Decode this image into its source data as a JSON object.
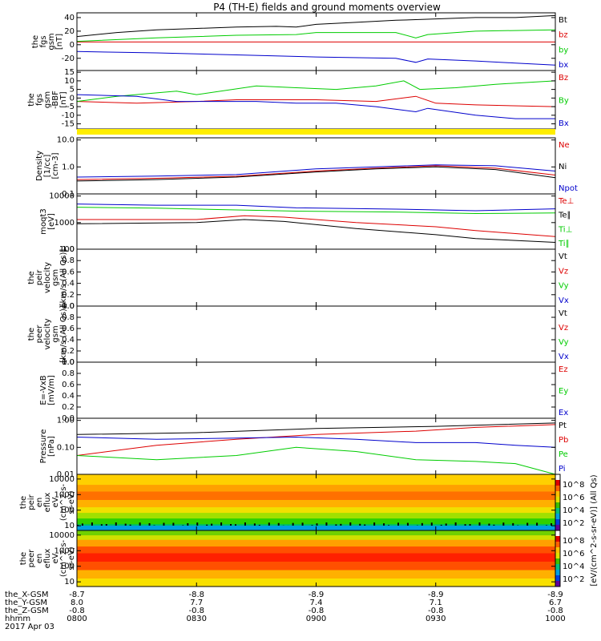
{
  "title": "P4 (TH-E) fields and ground moments overview",
  "colors": {
    "black": "#000000",
    "red": "#dd0000",
    "green": "#00cc00",
    "blue": "#0000cc",
    "yellow": "#ffee00"
  },
  "chart_data": [
    {
      "type": "line",
      "id": "p1",
      "ylabel_lines": [
        "the",
        "fgs",
        "gsm",
        "[nT]"
      ],
      "yticks": [
        "40",
        "20",
        "0",
        "-20"
      ],
      "ylim": [
        -38,
        47
      ],
      "series": [
        {
          "name": "Bt",
          "color": "#000000",
          "points": [
            [
              0,
              12
            ],
            [
              10,
              18
            ],
            [
              20,
              22
            ],
            [
              30,
              24
            ],
            [
              40,
              26
            ],
            [
              50,
              27
            ],
            [
              55,
              26
            ],
            [
              60,
              30
            ],
            [
              70,
              33
            ],
            [
              80,
              36
            ],
            [
              85,
              37
            ],
            [
              90,
              38
            ],
            [
              100,
              40
            ],
            [
              110,
              40
            ],
            [
              120,
              43
            ]
          ]
        },
        {
          "name": "bz",
          "color": "#dd0000",
          "points": [
            [
              0,
              4
            ],
            [
              30,
              4
            ],
            [
              60,
              4
            ],
            [
              90,
              4
            ],
            [
              120,
              4
            ]
          ]
        },
        {
          "name": "by",
          "color": "#00cc00",
          "points": [
            [
              0,
              5
            ],
            [
              20,
              10
            ],
            [
              40,
              14
            ],
            [
              55,
              15
            ],
            [
              60,
              18
            ],
            [
              80,
              18
            ],
            [
              85,
              10
            ],
            [
              88,
              15
            ],
            [
              100,
              20
            ],
            [
              120,
              22
            ]
          ]
        },
        {
          "name": "bx",
          "color": "#0000cc",
          "points": [
            [
              0,
              -10
            ],
            [
              20,
              -12
            ],
            [
              40,
              -15
            ],
            [
              60,
              -18
            ],
            [
              80,
              -20
            ],
            [
              85,
              -26
            ],
            [
              88,
              -21
            ],
            [
              100,
              -24
            ],
            [
              110,
              -27
            ],
            [
              120,
              -30
            ]
          ]
        }
      ]
    },
    {
      "type": "line",
      "id": "p2",
      "ylabel_lines": [
        "the",
        "fgs",
        "gsm",
        "-BBF",
        "[nT]"
      ],
      "yticks": [
        "15",
        "10",
        "5",
        "0",
        "-5",
        "-10",
        "-15"
      ],
      "ylim": [
        -18,
        16
      ],
      "series": [
        {
          "name": "Bz",
          "color": "#dd0000",
          "points": [
            [
              0,
              -2
            ],
            [
              15,
              -3
            ],
            [
              30,
              -2
            ],
            [
              40,
              -1
            ],
            [
              50,
              -1
            ],
            [
              60,
              -1
            ],
            [
              75,
              -2
            ],
            [
              85,
              1
            ],
            [
              90,
              -3
            ],
            [
              100,
              -4
            ],
            [
              120,
              -5
            ]
          ]
        },
        {
          "name": "By",
          "color": "#00cc00",
          "points": [
            [
              0,
              -2
            ],
            [
              10,
              1
            ],
            [
              20,
              3
            ],
            [
              25,
              4
            ],
            [
              30,
              2
            ],
            [
              45,
              7
            ],
            [
              55,
              6
            ],
            [
              65,
              5
            ],
            [
              75,
              7
            ],
            [
              82,
              10
            ],
            [
              86,
              5
            ],
            [
              95,
              6
            ],
            [
              105,
              8
            ],
            [
              120,
              10
            ]
          ]
        },
        {
          "name": "Bx",
          "color": "#0000cc",
          "points": [
            [
              0,
              2
            ],
            [
              15,
              1
            ],
            [
              25,
              -2
            ],
            [
              35,
              -2
            ],
            [
              45,
              -2
            ],
            [
              55,
              -3
            ],
            [
              65,
              -3
            ],
            [
              75,
              -5
            ],
            [
              85,
              -8
            ],
            [
              88,
              -6
            ],
            [
              100,
              -10
            ],
            [
              110,
              -12
            ],
            [
              120,
              -12
            ]
          ]
        }
      ]
    },
    {
      "type": "line",
      "id": "p3",
      "ylabel_lines": [
        "Density",
        "[1/cc]",
        "[cm-3]"
      ],
      "log": true,
      "yticks": [
        "10.0",
        "1.0",
        "0.1"
      ],
      "ylim": [
        0.1,
        12
      ],
      "series": [
        {
          "name": "Ne",
          "color": "#dd0000",
          "points": [
            [
              0,
              0.34
            ],
            [
              20,
              0.38
            ],
            [
              40,
              0.45
            ],
            [
              60,
              0.7
            ],
            [
              75,
              0.9
            ],
            [
              90,
              1.1
            ],
            [
              105,
              0.9
            ],
            [
              120,
              0.5
            ]
          ]
        },
        {
          "name": "Ni",
          "color": "#000000",
          "points": [
            [
              0,
              0.3
            ],
            [
              20,
              0.34
            ],
            [
              40,
              0.42
            ],
            [
              60,
              0.65
            ],
            [
              75,
              0.85
            ],
            [
              90,
              1.0
            ],
            [
              105,
              0.8
            ],
            [
              120,
              0.4
            ]
          ]
        },
        {
          "name": "Npot",
          "color": "#0000cc",
          "points": [
            [
              0,
              0.42
            ],
            [
              20,
              0.46
            ],
            [
              40,
              0.52
            ],
            [
              60,
              0.85
            ],
            [
              75,
              1.0
            ],
            [
              90,
              1.2
            ],
            [
              105,
              1.1
            ],
            [
              120,
              0.7
            ]
          ]
        }
      ]
    },
    {
      "type": "line",
      "id": "p4",
      "ylabel_lines": [
        "moqt3",
        "[eV]"
      ],
      "log": true,
      "yticks": [
        "10000",
        "1000",
        "100"
      ],
      "ylim": [
        100,
        12000
      ],
      "legend": [
        "Te⊥",
        "Te∥",
        "Ti⊥",
        "Ti∥"
      ],
      "series": [
        {
          "name": "Te⊥",
          "color": "#dd0000",
          "points": [
            [
              0,
              1300
            ],
            [
              30,
              1300
            ],
            [
              42,
              1800
            ],
            [
              52,
              1600
            ],
            [
              70,
              1000
            ],
            [
              90,
              700
            ],
            [
              100,
              500
            ],
            [
              120,
              300
            ]
          ]
        },
        {
          "name": "Te∥",
          "color": "#000000",
          "points": [
            [
              0,
              900
            ],
            [
              30,
              1000
            ],
            [
              42,
              1300
            ],
            [
              52,
              1100
            ],
            [
              70,
              600
            ],
            [
              90,
              350
            ],
            [
              100,
              250
            ],
            [
              120,
              180
            ]
          ]
        },
        {
          "name": "Ti⊥",
          "color": "#0000cc",
          "points": [
            [
              0,
              5000
            ],
            [
              20,
              4500
            ],
            [
              40,
              4500
            ],
            [
              55,
              3600
            ],
            [
              80,
              3200
            ],
            [
              100,
              2800
            ],
            [
              120,
              3300
            ]
          ]
        },
        {
          "name": "Ti∥",
          "color": "#00cc00",
          "points": [
            [
              0,
              3800
            ],
            [
              20,
              3500
            ],
            [
              40,
              3000
            ],
            [
              55,
              2700
            ],
            [
              80,
              2500
            ],
            [
              100,
              2200
            ],
            [
              120,
              2300
            ]
          ]
        }
      ]
    },
    {
      "type": "line",
      "id": "p5",
      "ylabel_lines": [
        "the",
        "peir",
        "velocity",
        "gsm",
        "[km/s (All Qs)]"
      ],
      "yticks": [
        "1.0",
        "0.8",
        "0.6",
        "0.4",
        "0.2",
        "0.0"
      ],
      "ylim": [
        0,
        1
      ],
      "legend": [
        "Vt",
        "Vz",
        "Vy",
        "Vx"
      ],
      "series": []
    },
    {
      "type": "line",
      "id": "p6",
      "ylabel_lines": [
        "the",
        "peer",
        "velocity",
        "gsm",
        "[km/s (All Qs)]"
      ],
      "yticks": [
        "1.0",
        "0.8",
        "0.6",
        "0.4",
        "0.2",
        "0.0"
      ],
      "ylim": [
        0,
        1
      ],
      "legend": [
        "Vt",
        "Vz",
        "Vy",
        "Vx"
      ],
      "series": []
    },
    {
      "type": "line",
      "id": "p7",
      "ylabel_lines": [
        "E=-VxB",
        "[mV/m]"
      ],
      "yticks": [
        "1.0",
        "0.8",
        "0.6",
        "0.4",
        "0.2",
        "0.0"
      ],
      "ylim": [
        0,
        1
      ],
      "legend": [
        "Ez",
        "Ey",
        "Ex"
      ],
      "series": []
    },
    {
      "type": "line",
      "id": "p8",
      "ylabel_lines": [
        "Pressure",
        "[nPa]"
      ],
      "log": true,
      "yticks": [
        "1.00",
        "0.10",
        "0.01"
      ],
      "ylim": [
        0.01,
        1.2
      ],
      "series": [
        {
          "name": "Pt",
          "color": "#000000",
          "points": [
            [
              0,
              0.3
            ],
            [
              30,
              0.35
            ],
            [
              60,
              0.5
            ],
            [
              90,
              0.6
            ],
            [
              120,
              0.8
            ]
          ]
        },
        {
          "name": "Pb",
          "color": "#dd0000",
          "points": [
            [
              0,
              0.05
            ],
            [
              20,
              0.12
            ],
            [
              40,
              0.2
            ],
            [
              60,
              0.3
            ],
            [
              85,
              0.4
            ],
            [
              100,
              0.55
            ],
            [
              120,
              0.7
            ]
          ]
        },
        {
          "name": "Pe",
          "color": "#00cc00",
          "points": [
            [
              0,
              0.05
            ],
            [
              20,
              0.035
            ],
            [
              40,
              0.05
            ],
            [
              55,
              0.1
            ],
            [
              70,
              0.07
            ],
            [
              85,
              0.035
            ],
            [
              100,
              0.03
            ],
            [
              110,
              0.025
            ],
            [
              120,
              0.01
            ]
          ]
        },
        {
          "name": "Pi",
          "color": "#0000cc",
          "points": [
            [
              0,
              0.24
            ],
            [
              20,
              0.2
            ],
            [
              40,
              0.22
            ],
            [
              55,
              0.24
            ],
            [
              70,
              0.2
            ],
            [
              85,
              0.15
            ],
            [
              100,
              0.15
            ],
            [
              110,
              0.12
            ],
            [
              120,
              0.1
            ]
          ]
        }
      ]
    },
    {
      "type": "heatmap",
      "id": "p9",
      "ylabel_lines": [
        "the",
        "peir",
        "en",
        "eflux",
        "eV",
        "(cm^2-s-",
        "sr-eV)"
      ],
      "yticks": [
        "10000",
        "1000",
        "100",
        "10"
      ],
      "ylim": [
        5,
        20000
      ],
      "log": true
    },
    {
      "type": "heatmap",
      "id": "p10",
      "ylabel_lines": [
        "the",
        "peer",
        "en",
        "eflux",
        "eV",
        "(cm^2-s-",
        "sr-eV)"
      ],
      "yticks": [
        "10000",
        "1000",
        "100",
        "10"
      ],
      "ylim": [
        5,
        20000
      ],
      "log": true
    }
  ],
  "colorbar": {
    "title": "[eV/(cm^2-s-sr-eV)] (All Qs)",
    "ticks_top": [
      "10^8",
      "10^6",
      "10^4",
      "10^2"
    ],
    "ticks_bottom": [
      "10^8",
      "10^6",
      "10^4",
      "10^2"
    ]
  },
  "footer": {
    "row_labels": [
      "the_X-GSM",
      "the_Y-GSM",
      "the_Z-GSM",
      "hhmm",
      "2017 Apr 03"
    ],
    "columns": [
      [
        "-8.7",
        "8.0",
        "-0.8",
        "0800"
      ],
      [
        "-8.8",
        "7.7",
        "-0.8",
        "0830"
      ],
      [
        "-8.9",
        "7.4",
        "-0.8",
        "0900"
      ],
      [
        "-8.9",
        "7.1",
        "-0.8",
        "0930"
      ],
      [
        "-8.9",
        "6.7",
        "-0.8",
        "1000"
      ]
    ]
  }
}
